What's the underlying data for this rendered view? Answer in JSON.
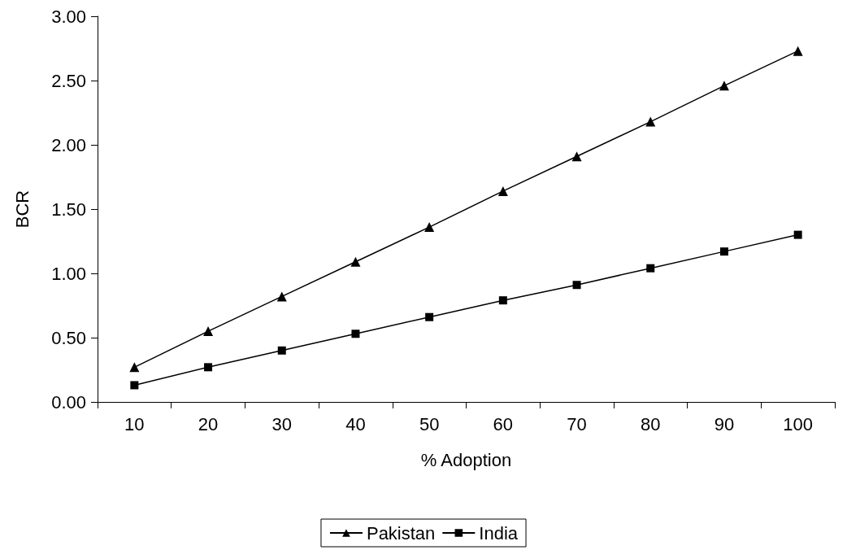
{
  "chart_data": {
    "type": "line",
    "xlabel": "% Adoption",
    "ylabel": "BCR",
    "categories": [
      "10",
      "20",
      "30",
      "40",
      "50",
      "60",
      "70",
      "80",
      "90",
      "100"
    ],
    "series": [
      {
        "name": "Pakistan",
        "color": "#000000",
        "marker": "triangle",
        "values": [
          0.27,
          0.55,
          0.82,
          1.09,
          1.36,
          1.64,
          1.91,
          2.18,
          2.46,
          2.73
        ]
      },
      {
        "name": "India",
        "color": "#000000",
        "marker": "square",
        "values": [
          0.13,
          0.27,
          0.4,
          0.53,
          0.66,
          0.79,
          0.91,
          1.04,
          1.17,
          1.3
        ]
      }
    ],
    "ylim": [
      0,
      3
    ],
    "yticks": [
      {
        "value": 0,
        "label": "0.00"
      },
      {
        "value": 0.5,
        "label": "0.50"
      },
      {
        "value": 1,
        "label": "1.00"
      },
      {
        "value": 1.5,
        "label": "1.50"
      },
      {
        "value": 2,
        "label": "2.00"
      },
      {
        "value": 2.5,
        "label": "2.50"
      },
      {
        "value": 3,
        "label": "3.00"
      }
    ],
    "grid": false,
    "legend": "bottom",
    "line_style": "solid"
  }
}
